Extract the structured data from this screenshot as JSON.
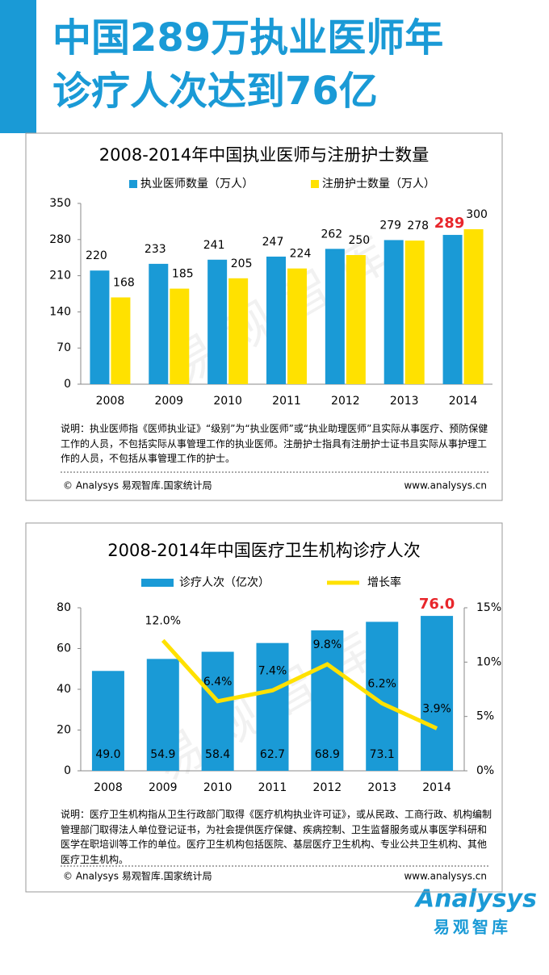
{
  "header": {
    "title_lines": [
      "中国289万执业医师年",
      "诊疗人次达到76亿"
    ]
  },
  "chart_data": [
    {
      "type": "bar",
      "title": "2008-2014年中国执业医师与注册护士数量",
      "categories": [
        "2008",
        "2009",
        "2010",
        "2011",
        "2012",
        "2013",
        "2014"
      ],
      "series": [
        {
          "name": "执业医师数量（万人）",
          "color": "#1a9ad6",
          "values": [
            220,
            233,
            241,
            247,
            262,
            279,
            289
          ],
          "value_label_colors": [
            "#000000",
            "#000000",
            "#000000",
            "#000000",
            "#000000",
            "#000000",
            "#e8262b"
          ]
        },
        {
          "name": "注册护士数量（万人）",
          "color": "#ffe100",
          "values": [
            168,
            185,
            205,
            224,
            250,
            278,
            300
          ]
        }
      ],
      "ylim": [
        0,
        350
      ],
      "yticks": [
        0,
        70,
        140,
        210,
        280,
        350
      ],
      "note": "说明：执业医师指《医师执业证》“级别”为“执业医师”或“执业助理医师”且实际从事医疗、预防保健工作的人员，不包括实际从事管理工作的执业医师。注册护士指具有注册护士证书且实际从事护理工作的人员，不包括从事管理工作的护士。",
      "source": "© Analysys 易观智库.国家统计局",
      "website": "www.analysys.cn",
      "watermark": "易观智库"
    },
    {
      "type": "bar_line",
      "title": "2008-2014年中国医疗卫生机构诊疗人次",
      "categories": [
        "2008",
        "2009",
        "2010",
        "2011",
        "2012",
        "2013",
        "2014"
      ],
      "series": [
        {
          "name": "诊疗人次（亿次）",
          "color": "#1a9ad6",
          "values": [
            49.0,
            54.9,
            58.4,
            62.7,
            68.9,
            73.1,
            76.0
          ],
          "value_labels": [
            "49.0",
            "54.9",
            "58.4",
            "62.7",
            "68.9",
            "73.1",
            "76.0"
          ],
          "value_label_colors": [
            "#000000",
            "#000000",
            "#000000",
            "#000000",
            "#000000",
            "#000000",
            "#e8262b"
          ]
        },
        {
          "name": "增长率",
          "color": "#ffe100",
          "axis": "y2",
          "values": [
            null,
            12.0,
            6.4,
            7.4,
            9.8,
            6.2,
            3.9
          ],
          "value_labels": [
            null,
            "12.0%",
            "6.4%",
            "7.4%",
            "9.8%",
            "6.2%",
            "3.9%"
          ]
        }
      ],
      "ylim": [
        0,
        80
      ],
      "yticks": [
        0,
        20,
        40,
        60,
        80
      ],
      "y2lim": [
        0,
        15
      ],
      "y2ticks": [
        {
          "value": 0,
          "label": "0%"
        },
        {
          "value": 5,
          "label": "5%"
        },
        {
          "value": 10,
          "label": "10%"
        },
        {
          "value": 15,
          "label": "15%"
        }
      ],
      "note": "说明：医疗卫生机构指从卫生行政部门取得《医疗机构执业许可证》，或从民政、工商行政、机构编制管理部门取得法人单位登记证书，为社会提供医疗保健、疾病控制、卫生监督服务或从事医学科研和医学在职培训等工作的单位。医疗卫生机构包括医院、基层医疗卫生机构、专业公共卫生机构、其他医疗卫生机构。",
      "source": "© Analysys 易观智库.国家统计局",
      "website": "www.analysys.cn",
      "watermark": "易观智库"
    }
  ],
  "logo": {
    "brand": "Analysys",
    "name": "易观智库"
  }
}
